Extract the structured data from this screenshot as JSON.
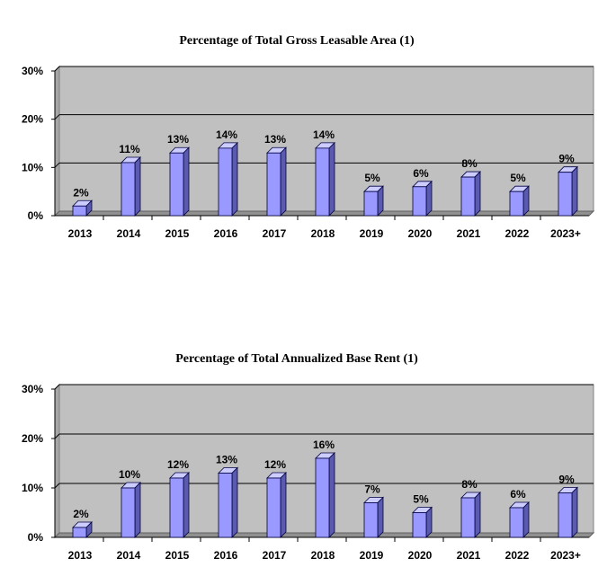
{
  "chart_data": [
    {
      "type": "bar",
      "title": "Percentage of Total Gross Leasable Area (1)",
      "categories": [
        "2013",
        "2014",
        "2015",
        "2016",
        "2017",
        "2018",
        "2019",
        "2020",
        "2021",
        "2022",
        "2023+"
      ],
      "values": [
        2,
        11,
        13,
        14,
        13,
        14,
        5,
        6,
        8,
        5,
        9
      ],
      "data_labels": [
        "2%",
        "11%",
        "13%",
        "14%",
        "13%",
        "14%",
        "5%",
        "6%",
        "8%",
        "5%",
        "9%"
      ],
      "ylim": [
        0,
        30
      ],
      "yticks": [
        "0%",
        "10%",
        "20%",
        "30%"
      ],
      "grid": true,
      "bar_color": "#9999ff",
      "plot_bg": "#c0c0c0"
    },
    {
      "type": "bar",
      "title": "Percentage of Total Annualized Base Rent (1)",
      "categories": [
        "2013",
        "2014",
        "2015",
        "2016",
        "2017",
        "2018",
        "2019",
        "2020",
        "2021",
        "2022",
        "2023+"
      ],
      "values": [
        2,
        10,
        12,
        13,
        12,
        16,
        7,
        5,
        8,
        6,
        9
      ],
      "data_labels": [
        "2%",
        "10%",
        "12%",
        "13%",
        "12%",
        "16%",
        "7%",
        "5%",
        "8%",
        "6%",
        "9%"
      ],
      "ylim": [
        0,
        30
      ],
      "yticks": [
        "0%",
        "10%",
        "20%",
        "30%"
      ],
      "grid": true,
      "bar_color": "#9999ff",
      "plot_bg": "#c0c0c0"
    }
  ]
}
